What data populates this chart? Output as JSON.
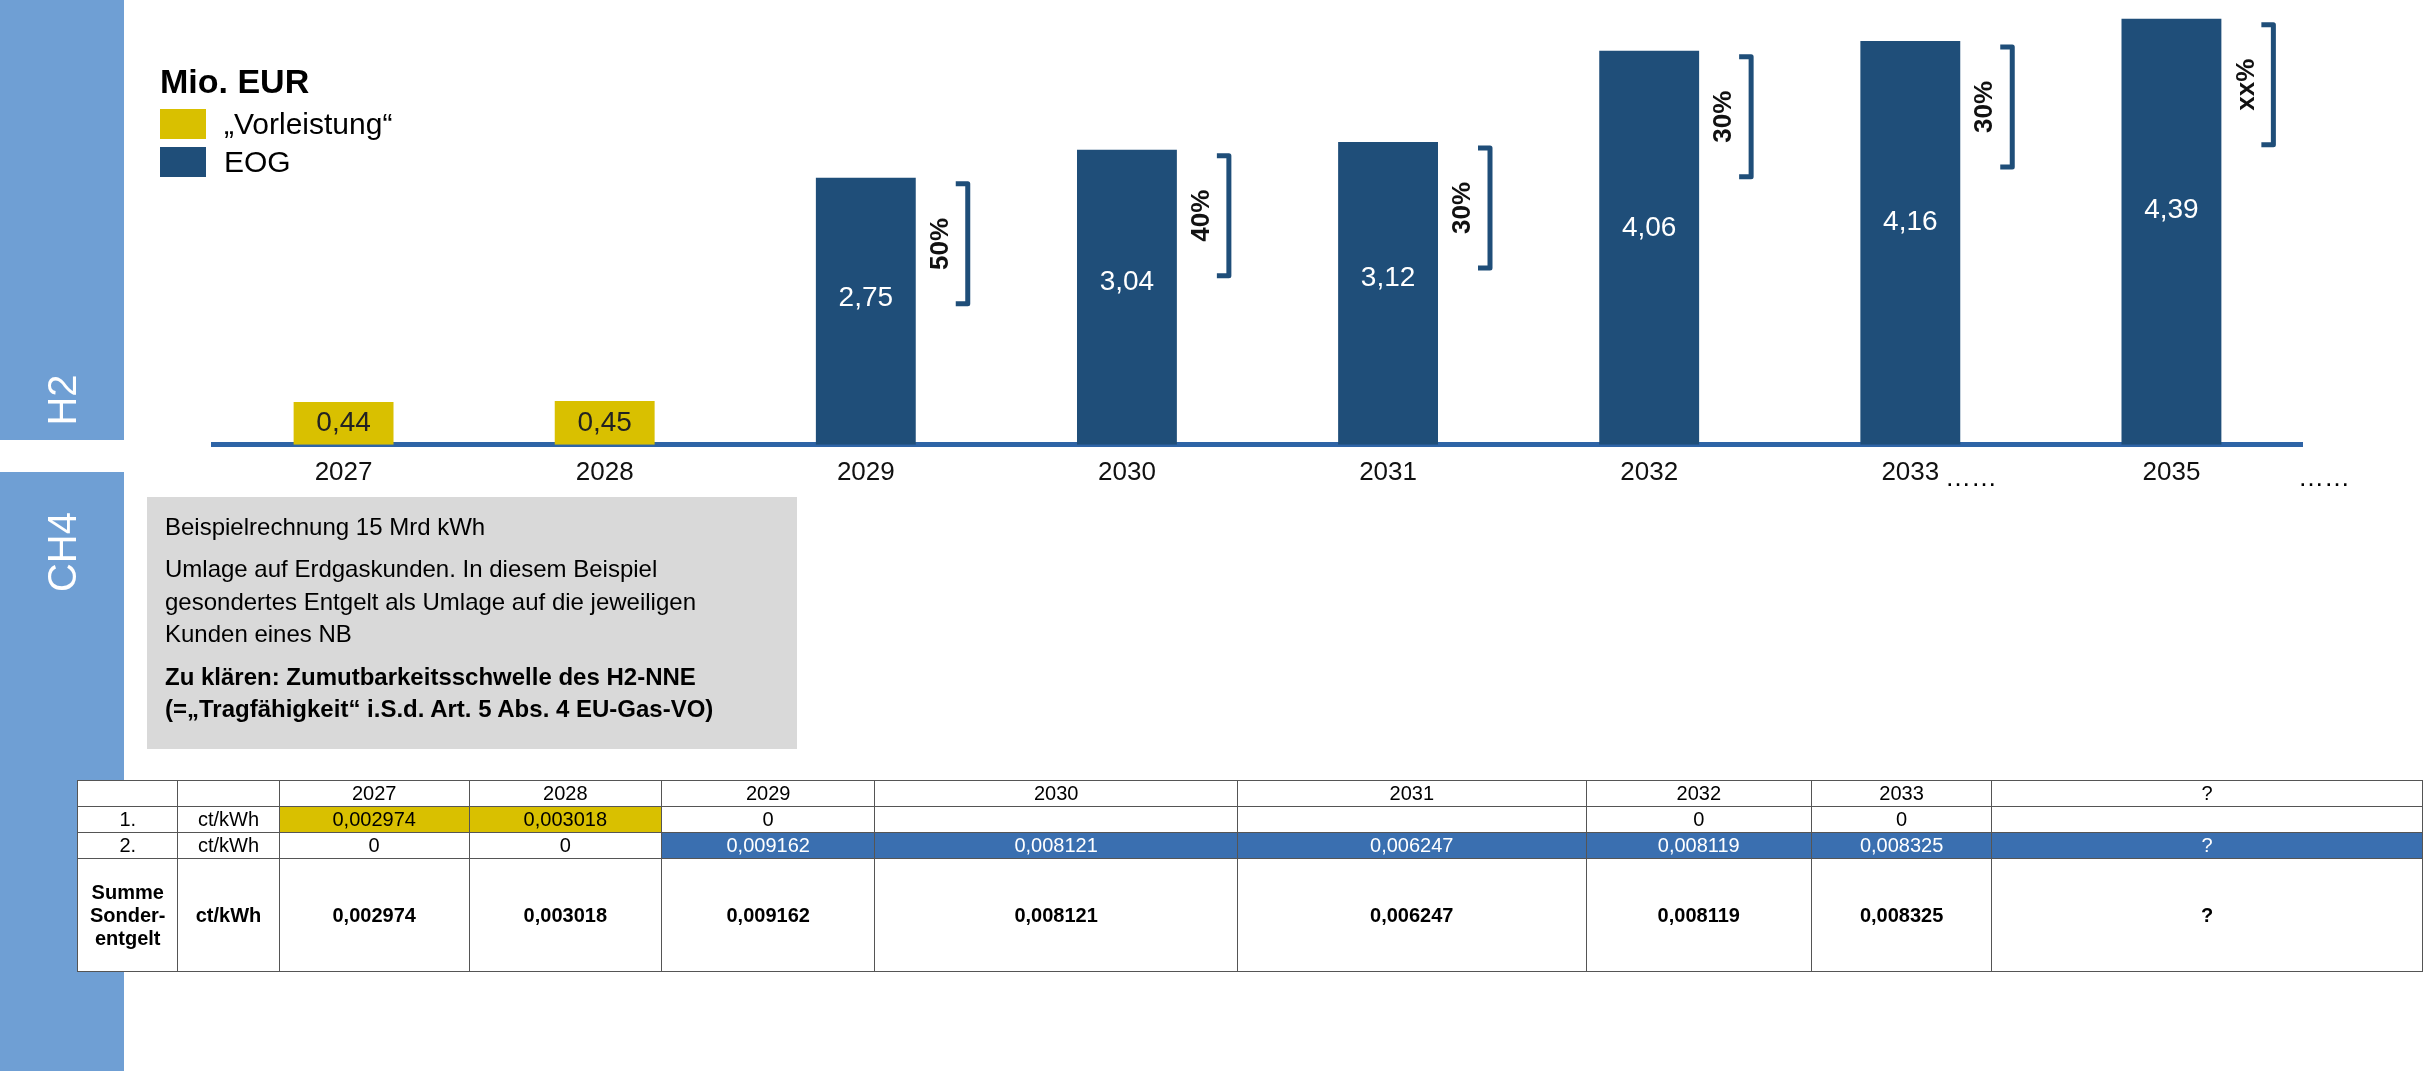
{
  "chart_data": {
    "type": "bar",
    "legend_title": "Mio. EUR",
    "legend": "top left",
    "categories": [
      "2027",
      "2028",
      "2029",
      "2030",
      "2031",
      "2032",
      "2033",
      "2035"
    ],
    "series": [
      {
        "name": "„Vorleistung“",
        "color": "#d9c000",
        "values": [
          0.44,
          0.45,
          null,
          null,
          null,
          null,
          null,
          null
        ],
        "value_labels": [
          "0,44",
          "0,45",
          null,
          null,
          null,
          null,
          null,
          null
        ]
      },
      {
        "name": "EOG",
        "color": "#1f4e79",
        "values": [
          null,
          null,
          2.75,
          3.04,
          3.12,
          4.06,
          4.16,
          4.39
        ],
        "value_labels": [
          null,
          null,
          "2,75",
          "3,04",
          "3,12",
          "4,06",
          "4,16",
          "4,39"
        ]
      }
    ],
    "annotations": [
      "H2",
      "CH4",
      "Beispielrechnung 15 Mrd kWh",
      "Umlage auf Erdgaskunden. In diesem Beispiel gesondertes Entgelt als Umlage auf die jeweiligen Kunden eines NB",
      "Zu klären: Zumutbarkeitsschwelle des H2-NNE (=„Tragfähigkeit“ i.S.d. Art. 5 Abs. 4 EU-Gas-VO)",
      "……",
      "……",
      {
        "text": "50%",
        "x": "2029",
        "y": 2.75
      },
      {
        "text": "40%",
        "x": "2030",
        "y": 3.04
      },
      {
        "text": "30%",
        "x": "2031",
        "y": 3.12
      },
      {
        "text": "30%",
        "x": "2032",
        "y": 4.06
      },
      {
        "text": "30%",
        "x": "2033",
        "y": 4.16
      },
      {
        "text": "xx%",
        "x": "2035",
        "y": 4.39
      },
      "2027",
      "2028",
      "2029",
      "2030",
      "2031",
      "2032",
      "2033",
      "?",
      "1.",
      "ct/kWh",
      "0,002974",
      "0,003018",
      "0",
      "0",
      "0",
      "2.",
      "ct/kWh",
      "0",
      "0",
      "0,009162",
      "0,008121",
      "0,006247",
      "0,008119",
      "0,008325",
      "?",
      "Summe Sonder-entgelt",
      "ct/kWh",
      "0,002974",
      "0,003018",
      "0,009162",
      "0,008121",
      "0,006247",
      "0,008119",
      "0,008325",
      "?"
    ]
  }
}
